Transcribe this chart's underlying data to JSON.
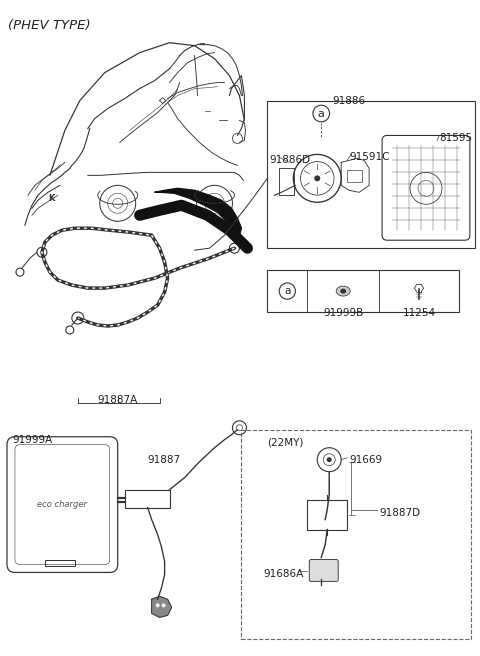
{
  "background": "#ffffff",
  "lc": "#333333",
  "tc": "#222222",
  "fs": 7.5,
  "labels": {
    "phev_type": "(PHEV TYPE)",
    "91886": "91886",
    "91886D": "91886D",
    "91591C": "91591C",
    "81595": "81595",
    "91887A": "91887A",
    "91999A": "91999A",
    "91887": "91887",
    "22MY": "(22MY)",
    "91669": "91669",
    "91887D": "91887D",
    "91686A": "91686A",
    "91999B": "91999B",
    "11254": "11254",
    "a_label": "a",
    "eco_charger": "eco charger"
  }
}
